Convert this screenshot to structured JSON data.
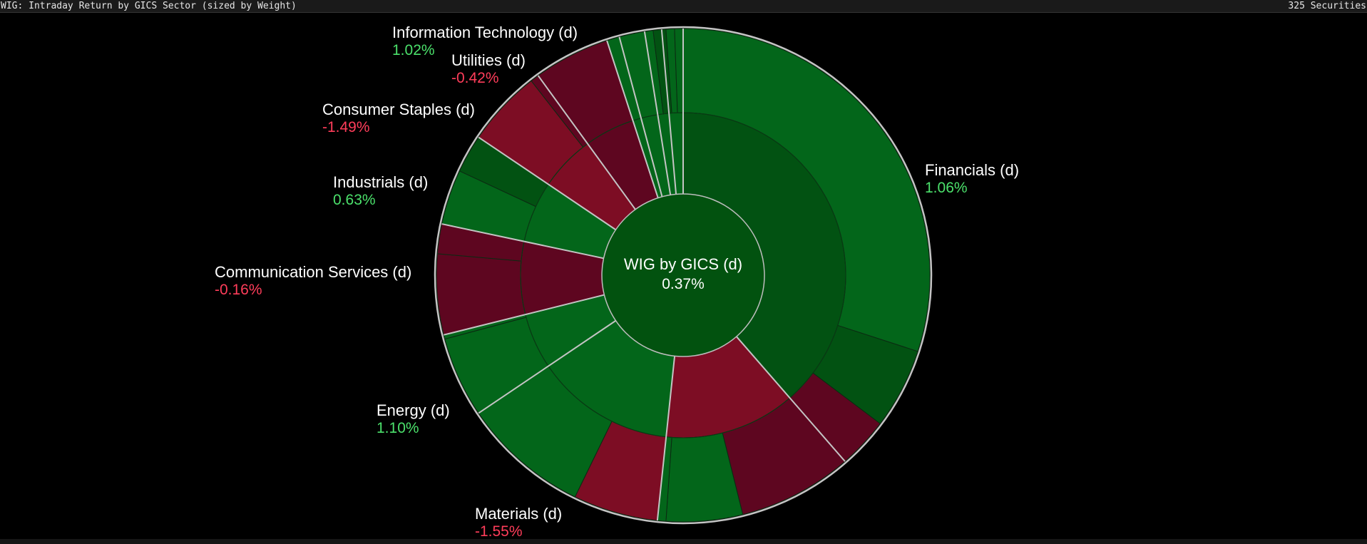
{
  "header": {
    "title": "WIG: Intraday Return by GICS Sector (sized by Weight)",
    "security_count": "325 Securities"
  },
  "chart_data": {
    "type": "sunburst",
    "title": "WIG: Intraday Return by GICS Sector (sized by Weight)",
    "center": {
      "label": "WIG by GICS (d)",
      "value": "0.37%"
    },
    "colors": {
      "positive_text": "#4be06b",
      "negative_text": "#ff3d5a",
      "positive_fill": "#03661a",
      "positive_fill_dark": "#025212",
      "negative_fill": "#7d0d24",
      "negative_fill_dark": "#5e0620"
    },
    "sectors": [
      {
        "name": "Financials (d)",
        "value": "1.06%",
        "sign": "pos"
      },
      {
        "name": "Materials (d)",
        "value": "-1.55%",
        "sign": "neg"
      },
      {
        "name": "Energy (d)",
        "value": "1.10%",
        "sign": "pos"
      },
      {
        "name": "Communication Services (d)",
        "value": "-0.16%",
        "sign": "neg"
      },
      {
        "name": "Industrials (d)",
        "value": "0.63%",
        "sign": "pos"
      },
      {
        "name": "Consumer Staples (d)",
        "value": "-1.49%",
        "sign": "neg"
      },
      {
        "name": "Utilities (d)",
        "value": "-0.42%",
        "sign": "neg"
      },
      {
        "name": "Information Technology (d)",
        "value": "1.02%",
        "sign": "pos"
      }
    ]
  }
}
